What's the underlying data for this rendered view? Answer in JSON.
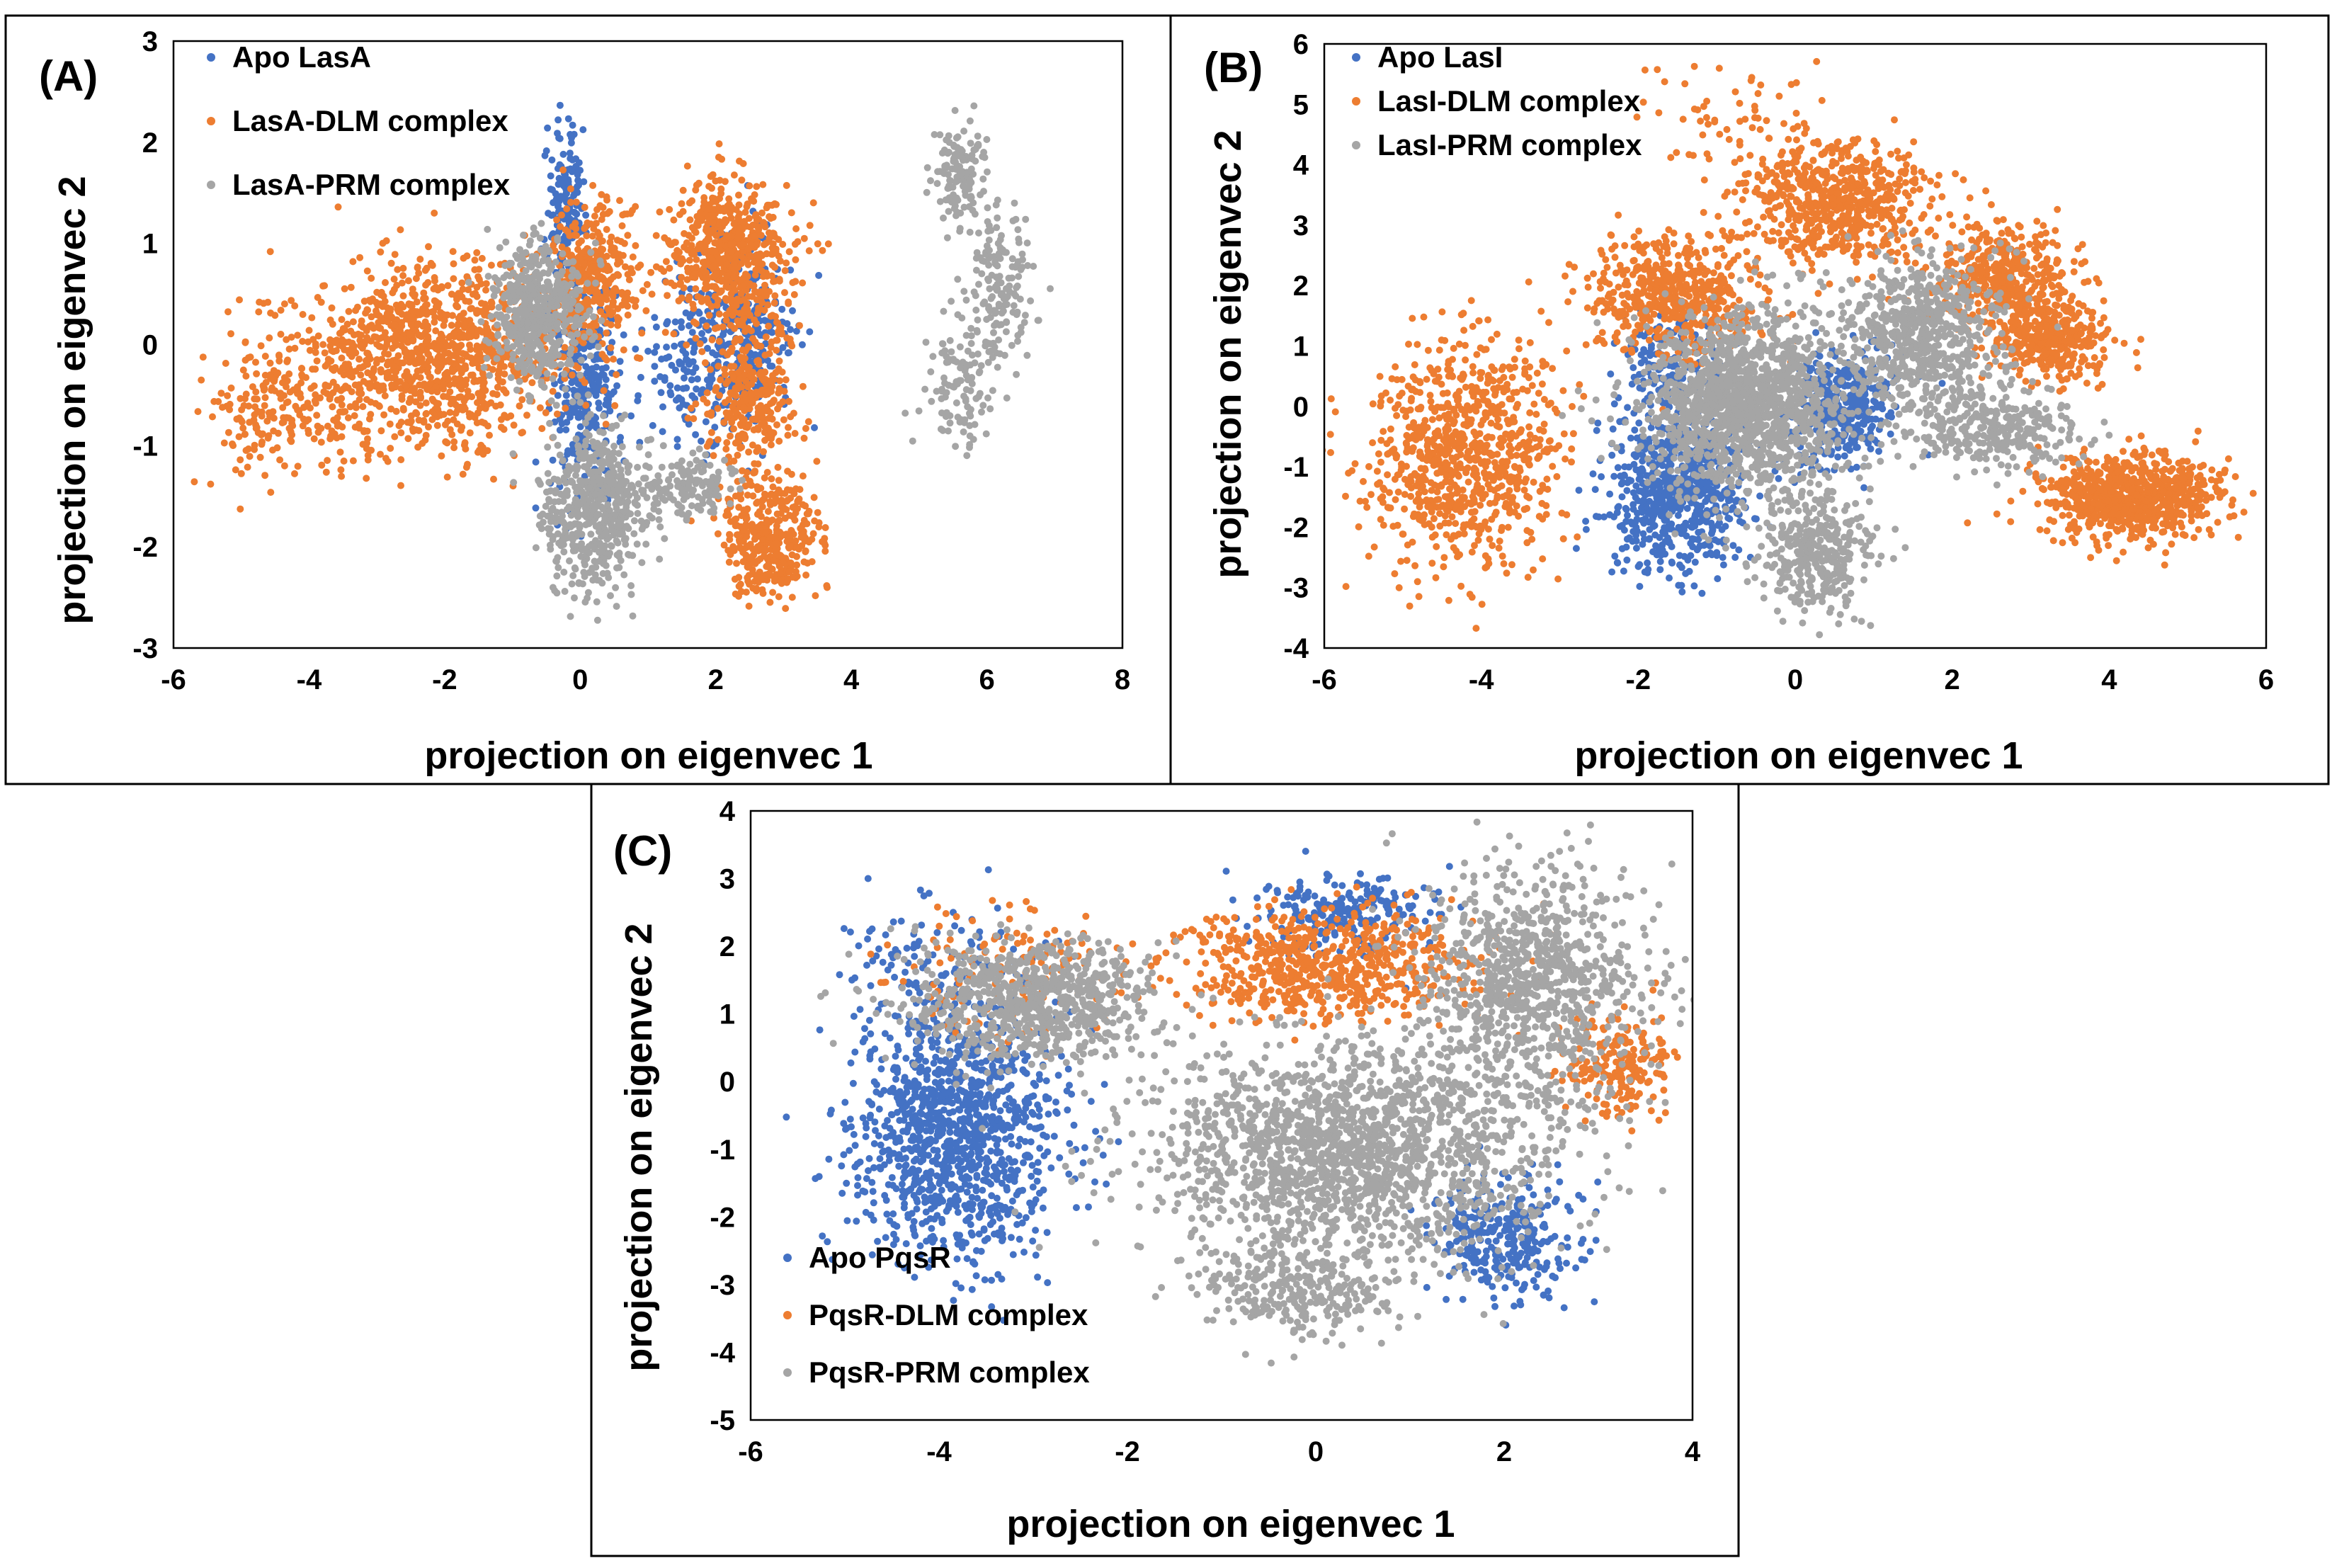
{
  "chart_data": [
    {
      "type": "scatter",
      "panel": "(A)",
      "xlabel": "projection on eigenvec 1",
      "ylabel": "projection on eigenvec 2",
      "xlim": [
        -6,
        8
      ],
      "ylim": [
        -3,
        3
      ],
      "xticks": [
        "-6",
        "-4",
        "-2",
        "0",
        "2",
        "4",
        "6",
        "8"
      ],
      "yticks": [
        "-3",
        "-2",
        "-1",
        "0",
        "1",
        "2",
        "3"
      ],
      "legend_position": "top-left",
      "series": [
        {
          "name": "Apo LasA",
          "color": "#4472C4",
          "clusters": [
            {
              "cx": -0.2,
              "cy": 1.4,
              "sx": 0.15,
              "sy": 0.35,
              "n": 160
            },
            {
              "cx": 0.1,
              "cy": -0.4,
              "sx": 0.3,
              "sy": 0.6,
              "n": 320
            },
            {
              "cx": 2.4,
              "cy": 0.1,
              "sx": 0.35,
              "sy": 0.5,
              "n": 280
            },
            {
              "cx": 1.6,
              "cy": -0.2,
              "sx": 0.3,
              "sy": 0.4,
              "n": 120
            }
          ]
        },
        {
          "name": "LasA-DLM complex",
          "color": "#ED7D31",
          "clusters": [
            {
              "cx": -2.2,
              "cy": -0.1,
              "sx": 1.0,
              "sy": 0.45,
              "n": 1100
            },
            {
              "cx": -4.4,
              "cy": -0.6,
              "sx": 0.6,
              "sy": 0.35,
              "n": 200
            },
            {
              "cx": 0.2,
              "cy": 0.7,
              "sx": 0.35,
              "sy": 0.35,
              "n": 350
            },
            {
              "cx": 2.2,
              "cy": 0.9,
              "sx": 0.45,
              "sy": 0.35,
              "n": 550
            },
            {
              "cx": 2.5,
              "cy": -0.5,
              "sx": 0.3,
              "sy": 0.4,
              "n": 300
            },
            {
              "cx": 2.8,
              "cy": -1.9,
              "sx": 0.35,
              "sy": 0.3,
              "n": 380
            }
          ]
        },
        {
          "name": "LasA-PRM complex",
          "color": "#A5A5A5",
          "clusters": [
            {
              "cx": -0.6,
              "cy": 0.35,
              "sx": 0.35,
              "sy": 0.35,
              "n": 500
            },
            {
              "cx": 0.2,
              "cy": -1.6,
              "sx": 0.4,
              "sy": 0.4,
              "n": 550
            },
            {
              "cx": 1.6,
              "cy": -1.4,
              "sx": 0.35,
              "sy": 0.15,
              "n": 140
            },
            {
              "cx": 5.6,
              "cy": 1.7,
              "sx": 0.2,
              "sy": 0.25,
              "n": 130
            },
            {
              "cx": 6.2,
              "cy": 0.6,
              "sx": 0.25,
              "sy": 0.4,
              "n": 150
            },
            {
              "cx": 5.6,
              "cy": -0.4,
              "sx": 0.3,
              "sy": 0.35,
              "n": 120
            }
          ]
        }
      ]
    },
    {
      "type": "scatter",
      "panel": "(B)",
      "xlabel": "projection on eigenvec 1",
      "ylabel": "projection on eigenvec 2",
      "xlim": [
        -6,
        6
      ],
      "ylim": [
        -4,
        6
      ],
      "xticks": [
        "-6",
        "-4",
        "-2",
        "0",
        "2",
        "4",
        "6"
      ],
      "yticks": [
        "-4",
        "-3",
        "-2",
        "-1",
        "0",
        "1",
        "2",
        "3",
        "4",
        "5",
        "6"
      ],
      "legend_position": "top-left",
      "series": [
        {
          "name": "Apo LasI",
          "color": "#4472C4",
          "clusters": [
            {
              "cx": -1.5,
              "cy": -1.4,
              "sx": 0.45,
              "sy": 0.6,
              "n": 650
            },
            {
              "cx": 0.6,
              "cy": 0.0,
              "sx": 0.35,
              "sy": 0.5,
              "n": 350
            },
            {
              "cx": -1.6,
              "cy": 0.6,
              "sx": 0.3,
              "sy": 0.5,
              "n": 150
            }
          ]
        },
        {
          "name": "LasI-DLM complex",
          "color": "#ED7D31",
          "clusters": [
            {
              "cx": -4.2,
              "cy": -0.8,
              "sx": 0.6,
              "sy": 0.9,
              "n": 850
            },
            {
              "cx": -1.5,
              "cy": 1.8,
              "sx": 0.55,
              "sy": 0.5,
              "n": 550
            },
            {
              "cx": 0.5,
              "cy": 3.4,
              "sx": 0.6,
              "sy": 0.5,
              "n": 600
            },
            {
              "cx": 2.7,
              "cy": 2.1,
              "sx": 0.45,
              "sy": 0.45,
              "n": 450
            },
            {
              "cx": 3.3,
              "cy": 1.1,
              "sx": 0.35,
              "sy": 0.35,
              "n": 350
            },
            {
              "cx": 4.3,
              "cy": -1.5,
              "sx": 0.55,
              "sy": 0.35,
              "n": 800
            },
            {
              "cx": -0.7,
              "cy": 4.8,
              "sx": 0.7,
              "sy": 0.6,
              "n": 70
            }
          ]
        },
        {
          "name": "LasI-PRM complex",
          "color": "#A5A5A5",
          "clusters": [
            {
              "cx": -0.6,
              "cy": 0.0,
              "sx": 0.65,
              "sy": 0.75,
              "n": 1500
            },
            {
              "cx": 1.6,
              "cy": 1.2,
              "sx": 0.55,
              "sy": 0.65,
              "n": 650
            },
            {
              "cx": 0.3,
              "cy": -2.4,
              "sx": 0.35,
              "sy": 0.5,
              "n": 350
            },
            {
              "cx": 2.5,
              "cy": -0.4,
              "sx": 0.5,
              "sy": 0.3,
              "n": 300
            }
          ]
        }
      ]
    },
    {
      "type": "scatter",
      "panel": "(C)",
      "xlabel": "projection on eigenvec 1",
      "ylabel": "projection on eigenvec 2",
      "xlim": [
        -6,
        4
      ],
      "ylim": [
        -5,
        4
      ],
      "xticks": [
        "-6",
        "-4",
        "-2",
        "0",
        "2",
        "4"
      ],
      "yticks": [
        "-5",
        "-4",
        "-3",
        "-2",
        "-1",
        "0",
        "1",
        "2",
        "3",
        "4"
      ],
      "legend_position": "bottom-left",
      "series": [
        {
          "name": "Apo PqsR",
          "color": "#4472C4",
          "clusters": [
            {
              "cx": -3.8,
              "cy": -0.8,
              "sx": 0.55,
              "sy": 0.9,
              "n": 1100
            },
            {
              "cx": 0.3,
              "cy": 2.5,
              "sx": 0.5,
              "sy": 0.3,
              "n": 220
            },
            {
              "cx": 2.0,
              "cy": -2.3,
              "sx": 0.4,
              "sy": 0.45,
              "n": 300
            },
            {
              "cx": -4.0,
              "cy": 1.6,
              "sx": 0.6,
              "sy": 0.6,
              "n": 120
            }
          ]
        },
        {
          "name": "PqsR-DLM complex",
          "color": "#ED7D31",
          "clusters": [
            {
              "cx": 0.2,
              "cy": 1.7,
              "sx": 0.8,
              "sy": 0.4,
              "n": 650
            },
            {
              "cx": 3.2,
              "cy": 0.2,
              "sx": 0.3,
              "sy": 0.4,
              "n": 200
            },
            {
              "cx": -3.2,
              "cy": 1.6,
              "sx": 0.6,
              "sy": 0.5,
              "n": 150
            }
          ]
        },
        {
          "name": "PqsR-PRM complex",
          "color": "#A5A5A5",
          "clusters": [
            {
              "cx": -3.0,
              "cy": 1.2,
              "sx": 0.65,
              "sy": 0.45,
              "n": 750
            },
            {
              "cx": 0.4,
              "cy": -1.0,
              "sx": 1.1,
              "sy": 0.8,
              "n": 1700
            },
            {
              "cx": 2.3,
              "cy": 1.5,
              "sx": 0.6,
              "sy": 0.8,
              "n": 900
            },
            {
              "cx": -0.2,
              "cy": -3.0,
              "sx": 0.5,
              "sy": 0.4,
              "n": 300
            }
          ]
        }
      ]
    }
  ]
}
